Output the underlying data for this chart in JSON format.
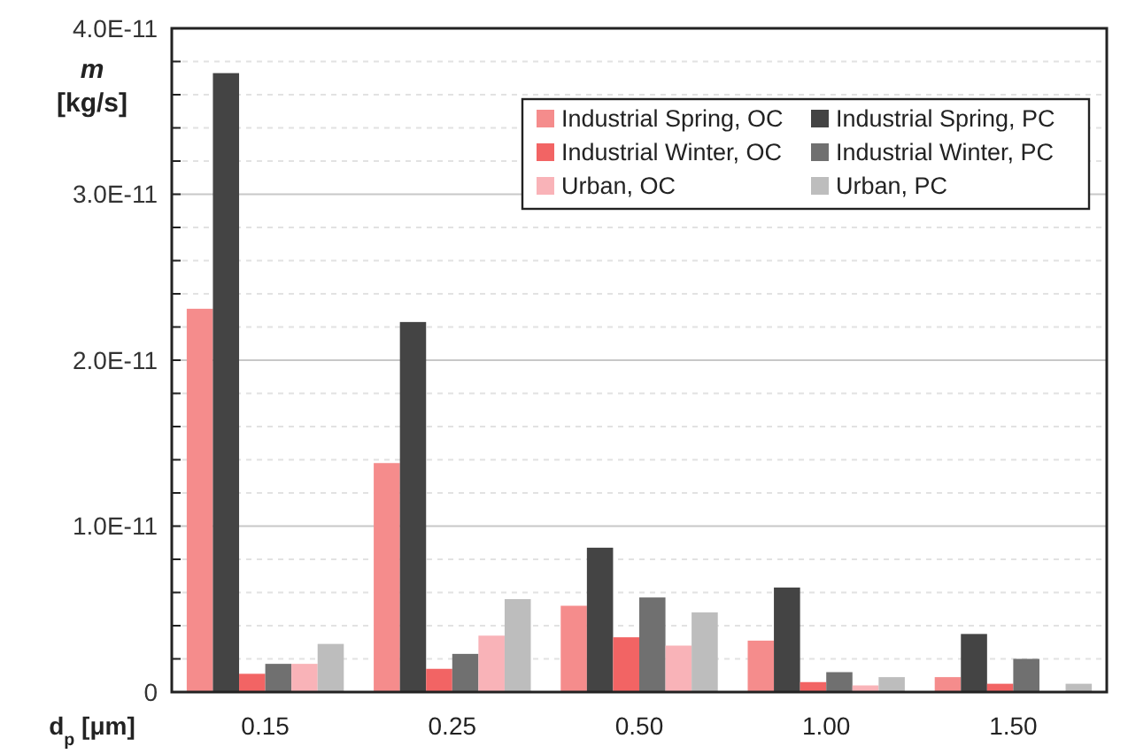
{
  "chart_data": {
    "type": "bar",
    "ylabel": "m [kg/s]",
    "xlabel": "d$_{p}$ [μm]",
    "categories": [
      "0.15",
      "0.25",
      "0.50",
      "1.00",
      "1.50"
    ],
    "series": [
      {
        "name": "Industrial Spring, OC",
        "color": "#f58c8c",
        "values": [
          2.31e-11,
          1.38e-11,
          5.2e-12,
          3.1e-12,
          9e-13
        ]
      },
      {
        "name": "Industrial Spring, PC",
        "color": "#444444",
        "values": [
          3.73e-11,
          2.23e-11,
          8.7e-12,
          6.3e-12,
          3.5e-12
        ]
      },
      {
        "name": "Industrial Winter, OC",
        "color": "#f26464",
        "values": [
          1.1e-12,
          1.4e-12,
          3.3e-12,
          6e-13,
          5e-13
        ]
      },
      {
        "name": "Industrial Winter, PC",
        "color": "#707070",
        "values": [
          1.7e-12,
          2.3e-12,
          5.7e-12,
          1.2e-12,
          2e-12
        ]
      },
      {
        "name": "Urban, OC",
        "color": "#f9b3b8",
        "values": [
          1.7e-12,
          3.4e-12,
          2.8e-12,
          4e-13,
          0
        ]
      },
      {
        "name": "Urban, PC",
        "color": "#bdbdbd",
        "values": [
          2.9e-12,
          5.6e-12,
          4.8e-12,
          9e-13,
          5e-13
        ]
      }
    ],
    "ylim": [
      0,
      4e-11
    ],
    "yticks": [
      {
        "value": 0,
        "label": "0"
      },
      {
        "value": 2e-12,
        "label": null
      },
      {
        "value": 4e-12,
        "label": null
      },
      {
        "value": 6e-12,
        "label": null
      },
      {
        "value": 8e-12,
        "label": null
      },
      {
        "value": 1e-11,
        "label": "1.0E-11"
      },
      {
        "value": 1.2e-11,
        "label": null
      },
      {
        "value": 1.4e-11,
        "label": null
      },
      {
        "value": 1.6e-11,
        "label": null
      },
      {
        "value": 1.8e-11,
        "label": null
      },
      {
        "value": 2e-11,
        "label": "2.0E-11"
      },
      {
        "value": 2.2e-11,
        "label": null
      },
      {
        "value": 2.4e-11,
        "label": null
      },
      {
        "value": 2.6e-11,
        "label": null
      },
      {
        "value": 2.8e-11,
        "label": null
      },
      {
        "value": 3e-11,
        "label": "3.0E-11"
      },
      {
        "value": 3.2e-11,
        "label": null
      },
      {
        "value": 3.4e-11,
        "label": null
      },
      {
        "value": 3.6e-11,
        "label": null
      },
      {
        "value": 3.8e-11,
        "label": null
      },
      {
        "value": 4e-11,
        "label": "4.0E-11"
      }
    ],
    "grid": "y",
    "legend": "top right"
  }
}
